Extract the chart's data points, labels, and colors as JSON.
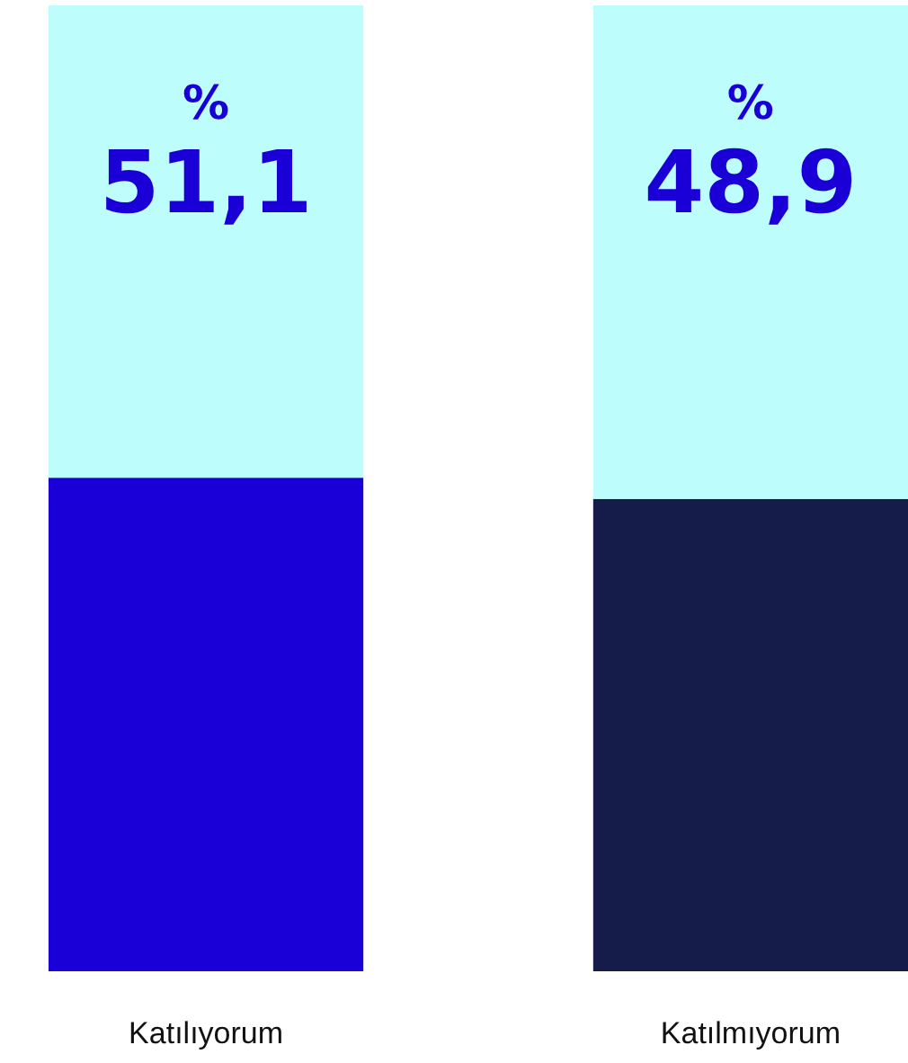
{
  "chart_data": {
    "type": "bar",
    "stacked": true,
    "categories": [
      "Katılıyorum",
      "Katılmıyorum"
    ],
    "series": [
      {
        "colors": [
          "#1a00d6",
          "#161c4a"
        ],
        "values": [
          51.1,
          48.9
        ],
        "value_labels": [
          "% 51,1",
          "% 48,9"
        ]
      },
      {
        "colors": [
          "#bdfdfc",
          "#bdfdfc"
        ],
        "values": [
          48.9,
          51.1
        ]
      }
    ],
    "ylim": [
      0,
      100
    ],
    "tick_labels": "x",
    "grid": false
  }
}
